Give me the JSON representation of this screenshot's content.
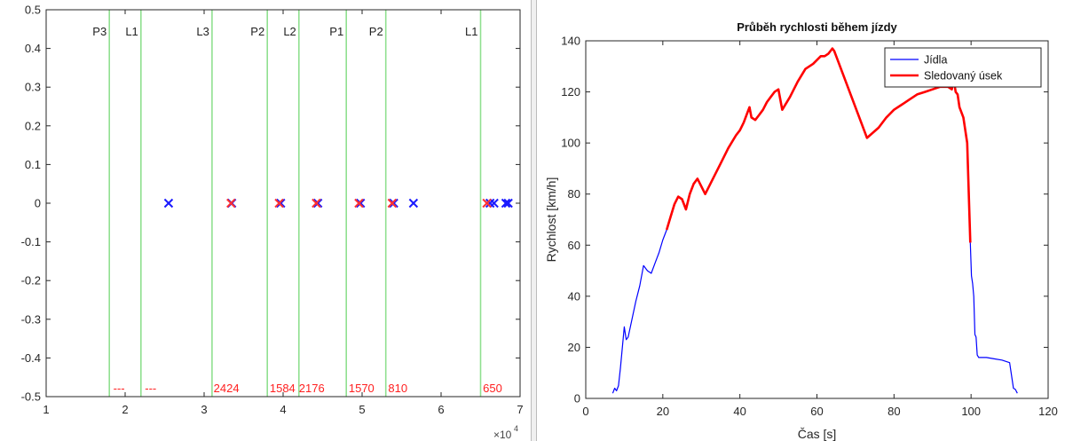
{
  "chart_data": [
    {
      "type": "scatter",
      "title": "",
      "xlabel": "",
      "ylabel": "",
      "xlim": [
        10000,
        70000
      ],
      "ylim": [
        -0.5,
        0.5
      ],
      "x_exponent_label": "×10",
      "x_exponent_power": "4",
      "x_ticks": [
        10000,
        20000,
        30000,
        40000,
        50000,
        60000,
        70000
      ],
      "x_tick_labels": [
        "1",
        "2",
        "3",
        "4",
        "5",
        "6",
        "7"
      ],
      "y_ticks": [
        -0.5,
        -0.4,
        -0.3,
        -0.2,
        -0.1,
        0,
        0.1,
        0.2,
        0.3,
        0.4,
        0.5
      ],
      "y_tick_labels": [
        "-0.5",
        "-0.4",
        "-0.3",
        "-0.2",
        "-0.1",
        "0",
        "0.1",
        "0.2",
        "0.3",
        "0.4",
        "0.5"
      ],
      "grid": false,
      "vertical_lines": [
        {
          "x": 18000,
          "label": "P3"
        },
        {
          "x": 22000,
          "label": "L1"
        },
        {
          "x": 31000,
          "label": "L3"
        },
        {
          "x": 38000,
          "label": "P2"
        },
        {
          "x": 42000,
          "label": "L2"
        },
        {
          "x": 48000,
          "label": "P1"
        },
        {
          "x": 53000,
          "label": "P2"
        },
        {
          "x": 65000,
          "label": "L1"
        }
      ],
      "line_color": "#90e090",
      "series": [
        {
          "color": "#1a1aff",
          "marker": "x",
          "points": [
            [
              25500,
              0
            ],
            [
              33500,
              0
            ],
            [
              39700,
              0
            ],
            [
              44400,
              0
            ],
            [
              49800,
              0
            ],
            [
              54000,
              0
            ],
            [
              56500,
              0
            ],
            [
              66200,
              0
            ],
            [
              66700,
              0
            ],
            [
              68200,
              0
            ],
            [
              68500,
              0
            ]
          ]
        },
        {
          "color": "#ff3030",
          "marker": "x",
          "points": [
            [
              33400,
              0
            ],
            [
              39500,
              0
            ],
            [
              44200,
              0
            ],
            [
              49600,
              0
            ],
            [
              53800,
              0
            ],
            [
              65800,
              0
            ]
          ]
        }
      ],
      "annotations": [
        {
          "x": 18500,
          "text": "---"
        },
        {
          "x": 22500,
          "text": "---"
        },
        {
          "x": 31200,
          "text": "2424"
        },
        {
          "x": 38300,
          "text": "1584"
        },
        {
          "x": 42000,
          "text": "2176"
        },
        {
          "x": 48300,
          "text": "1570"
        },
        {
          "x": 53300,
          "text": "810"
        },
        {
          "x": 65300,
          "text": "650"
        }
      ],
      "annotation_color": "#ff2020"
    },
    {
      "type": "line",
      "title": "Průběh rychlosti během jízdy",
      "xlabel": "Čas [s]",
      "ylabel": "Rychlost [km/h]",
      "xlim": [
        0,
        120
      ],
      "ylim": [
        0,
        140
      ],
      "x_ticks": [
        0,
        20,
        40,
        60,
        80,
        100,
        120
      ],
      "x_tick_labels": [
        "0",
        "20",
        "40",
        "60",
        "80",
        "100",
        "120"
      ],
      "y_ticks": [
        0,
        20,
        40,
        60,
        80,
        100,
        120,
        140
      ],
      "y_tick_labels": [
        "0",
        "20",
        "40",
        "60",
        "80",
        "100",
        "120",
        "140"
      ],
      "grid": false,
      "legend_position": "top-right",
      "series": [
        {
          "name": "Jídla",
          "color": "#0000ff",
          "x": [
            7,
            7.5,
            8,
            8.5,
            9,
            10,
            10.5,
            11,
            12,
            13,
            14,
            15,
            16,
            17,
            18,
            19,
            20,
            21,
            99.8,
            100.1,
            100.4,
            100.7,
            101,
            101.3,
            101.6,
            102,
            104,
            106,
            108,
            110,
            111,
            111.5,
            112
          ],
          "y": [
            2,
            4,
            3,
            5,
            12,
            28,
            23,
            24,
            31,
            38,
            44,
            52,
            50,
            49,
            53,
            57,
            62,
            66,
            61,
            48,
            45,
            40,
            25,
            24,
            17,
            16,
            16,
            15.5,
            15,
            14,
            4,
            3.5,
            2
          ]
        },
        {
          "name": "Sledovaný úsek",
          "color": "#ff0000",
          "x": [
            21,
            22,
            23,
            24,
            25,
            26,
            27,
            28,
            29,
            31,
            33,
            35,
            37,
            39,
            40,
            41,
            42,
            42.5,
            43,
            44,
            45,
            46,
            47,
            48,
            49,
            50,
            51,
            53,
            55,
            57,
            59,
            61,
            62,
            63,
            63.5,
            64,
            64.5,
            65,
            73,
            76,
            78,
            80,
            82,
            84,
            86,
            88,
            90,
            92,
            94,
            95,
            95.5,
            96,
            96.5,
            97,
            98,
            99,
            99.8
          ],
          "y": [
            66,
            71,
            76,
            79,
            78,
            74,
            80,
            84,
            86,
            80,
            86,
            92,
            98,
            103,
            105,
            108,
            112,
            114,
            110,
            109,
            111,
            113,
            116,
            118,
            120,
            121,
            113,
            118,
            124,
            129,
            131,
            134,
            134,
            135,
            136,
            137,
            136,
            134,
            102,
            106,
            110,
            113,
            115,
            117,
            119,
            120,
            121,
            122,
            122,
            121,
            125,
            120,
            119,
            114,
            110,
            100,
            61
          ]
        }
      ]
    }
  ]
}
